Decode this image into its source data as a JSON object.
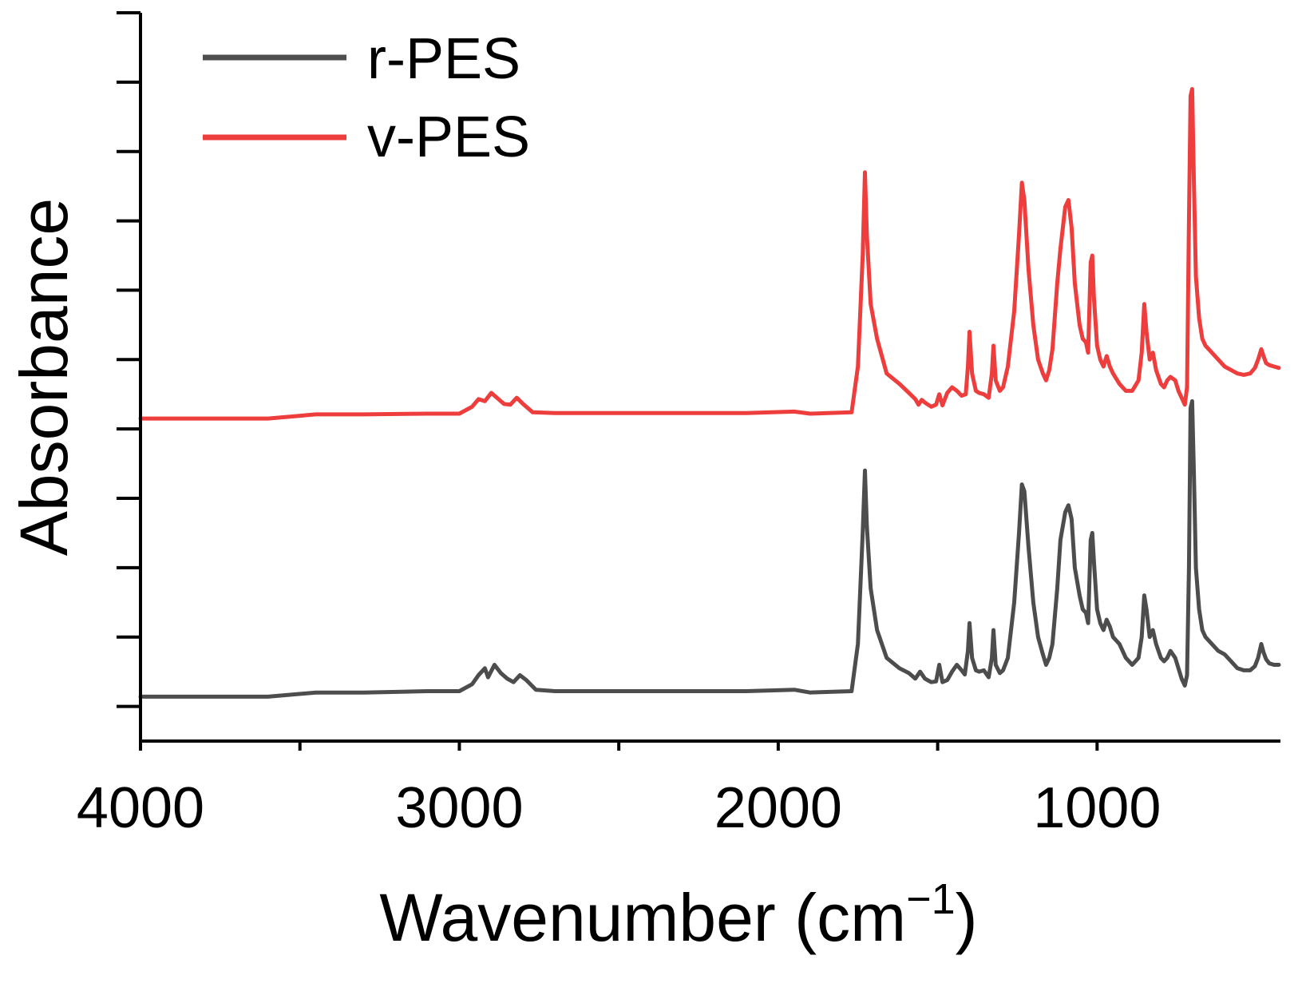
{
  "chart_data": {
    "type": "line",
    "title": "",
    "xlabel": "Wavenumber (cm",
    "xlabel_sup": "−1",
    "xlabel_close": ")",
    "ylabel": "Absorbance",
    "xlim": [
      4000,
      430
    ],
    "ylim": [
      0,
      10.5
    ],
    "x_ticks": [
      4000,
      3000,
      2000,
      1000
    ],
    "x_minor_ticks": [
      3500,
      2500,
      1500
    ],
    "y_ticks": [
      0.5,
      1.5,
      2.5,
      3.5,
      4.5,
      5.5,
      6.5,
      7.5,
      8.5,
      9.5,
      10.5
    ],
    "grid": false,
    "legend": "top-left",
    "series": [
      {
        "name": "r-PES",
        "color": "#4d4d4d",
        "points": [
          [
            4000,
            0.64
          ],
          [
            3600,
            0.64
          ],
          [
            3450,
            0.7
          ],
          [
            3300,
            0.7
          ],
          [
            3100,
            0.72
          ],
          [
            3000,
            0.72
          ],
          [
            2960,
            0.82
          ],
          [
            2940,
            0.95
          ],
          [
            2920,
            1.05
          ],
          [
            2910,
            0.92
          ],
          [
            2890,
            1.1
          ],
          [
            2870,
            0.98
          ],
          [
            2850,
            0.9
          ],
          [
            2830,
            0.85
          ],
          [
            2810,
            0.95
          ],
          [
            2790,
            0.88
          ],
          [
            2760,
            0.74
          ],
          [
            2700,
            0.72
          ],
          [
            2500,
            0.72
          ],
          [
            2300,
            0.72
          ],
          [
            2100,
            0.72
          ],
          [
            1950,
            0.74
          ],
          [
            1900,
            0.7
          ],
          [
            1770,
            0.72
          ],
          [
            1750,
            1.4
          ],
          [
            1735,
            3.0
          ],
          [
            1728,
            3.9
          ],
          [
            1722,
            3.1
          ],
          [
            1710,
            2.2
          ],
          [
            1690,
            1.6
          ],
          [
            1660,
            1.2
          ],
          [
            1620,
            1.05
          ],
          [
            1590,
            0.98
          ],
          [
            1570,
            0.9
          ],
          [
            1555,
            1.0
          ],
          [
            1540,
            0.9
          ],
          [
            1520,
            0.85
          ],
          [
            1505,
            0.86
          ],
          [
            1495,
            1.1
          ],
          [
            1485,
            0.85
          ],
          [
            1470,
            0.88
          ],
          [
            1455,
            1.0
          ],
          [
            1440,
            1.1
          ],
          [
            1425,
            1.02
          ],
          [
            1415,
            0.96
          ],
          [
            1405,
            1.3
          ],
          [
            1400,
            1.7
          ],
          [
            1392,
            1.2
          ],
          [
            1380,
            1.02
          ],
          [
            1370,
            1.0
          ],
          [
            1355,
            1.02
          ],
          [
            1340,
            0.92
          ],
          [
            1330,
            1.2
          ],
          [
            1325,
            1.6
          ],
          [
            1318,
            1.1
          ],
          [
            1305,
            0.98
          ],
          [
            1295,
            1.02
          ],
          [
            1280,
            1.2
          ],
          [
            1260,
            2.0
          ],
          [
            1245,
            3.0
          ],
          [
            1236,
            3.7
          ],
          [
            1228,
            3.6
          ],
          [
            1215,
            2.8
          ],
          [
            1200,
            2.0
          ],
          [
            1185,
            1.5
          ],
          [
            1170,
            1.25
          ],
          [
            1160,
            1.1
          ],
          [
            1150,
            1.2
          ],
          [
            1140,
            1.4
          ],
          [
            1125,
            2.2
          ],
          [
            1115,
            2.9
          ],
          [
            1100,
            3.3
          ],
          [
            1090,
            3.4
          ],
          [
            1080,
            3.2
          ],
          [
            1070,
            2.5
          ],
          [
            1055,
            2.1
          ],
          [
            1045,
            1.9
          ],
          [
            1035,
            1.85
          ],
          [
            1028,
            1.7
          ],
          [
            1020,
            2.9
          ],
          [
            1015,
            3.0
          ],
          [
            1010,
            2.6
          ],
          [
            1000,
            1.9
          ],
          [
            990,
            1.7
          ],
          [
            980,
            1.6
          ],
          [
            970,
            1.75
          ],
          [
            960,
            1.65
          ],
          [
            950,
            1.5
          ],
          [
            930,
            1.4
          ],
          [
            910,
            1.2
          ],
          [
            890,
            1.1
          ],
          [
            870,
            1.2
          ],
          [
            860,
            1.5
          ],
          [
            852,
            2.1
          ],
          [
            845,
            1.9
          ],
          [
            835,
            1.5
          ],
          [
            825,
            1.6
          ],
          [
            815,
            1.4
          ],
          [
            800,
            1.2
          ],
          [
            790,
            1.15
          ],
          [
            780,
            1.2
          ],
          [
            770,
            1.3
          ],
          [
            755,
            1.2
          ],
          [
            745,
            1.05
          ],
          [
            735,
            0.9
          ],
          [
            725,
            0.8
          ],
          [
            718,
            0.95
          ],
          [
            712,
            2.5
          ],
          [
            707,
            4.8
          ],
          [
            702,
            4.9
          ],
          [
            696,
            3.8
          ],
          [
            690,
            2.5
          ],
          [
            680,
            1.9
          ],
          [
            670,
            1.6
          ],
          [
            660,
            1.5
          ],
          [
            640,
            1.4
          ],
          [
            620,
            1.3
          ],
          [
            600,
            1.25
          ],
          [
            580,
            1.15
          ],
          [
            560,
            1.05
          ],
          [
            540,
            1.02
          ],
          [
            520,
            1.02
          ],
          [
            505,
            1.08
          ],
          [
            495,
            1.2
          ],
          [
            485,
            1.4
          ],
          [
            478,
            1.28
          ],
          [
            470,
            1.18
          ],
          [
            460,
            1.12
          ],
          [
            445,
            1.1
          ],
          [
            430,
            1.1
          ]
        ]
      },
      {
        "name": "v-PES",
        "color": "#ee3d3d",
        "points": [
          [
            4000,
            4.65
          ],
          [
            3600,
            4.65
          ],
          [
            3450,
            4.71
          ],
          [
            3300,
            4.71
          ],
          [
            3100,
            4.72
          ],
          [
            3000,
            4.72
          ],
          [
            2960,
            4.82
          ],
          [
            2940,
            4.93
          ],
          [
            2920,
            4.9
          ],
          [
            2900,
            5.02
          ],
          [
            2880,
            4.94
          ],
          [
            2860,
            4.86
          ],
          [
            2840,
            4.85
          ],
          [
            2820,
            4.95
          ],
          [
            2800,
            4.86
          ],
          [
            2770,
            4.74
          ],
          [
            2700,
            4.73
          ],
          [
            2500,
            4.73
          ],
          [
            2300,
            4.73
          ],
          [
            2100,
            4.73
          ],
          [
            1950,
            4.75
          ],
          [
            1900,
            4.72
          ],
          [
            1770,
            4.74
          ],
          [
            1750,
            5.4
          ],
          [
            1735,
            7.0
          ],
          [
            1728,
            8.2
          ],
          [
            1722,
            7.3
          ],
          [
            1710,
            6.3
          ],
          [
            1690,
            5.8
          ],
          [
            1660,
            5.3
          ],
          [
            1620,
            5.15
          ],
          [
            1590,
            5.02
          ],
          [
            1570,
            4.93
          ],
          [
            1560,
            4.85
          ],
          [
            1550,
            4.92
          ],
          [
            1540,
            4.88
          ],
          [
            1520,
            4.82
          ],
          [
            1505,
            4.85
          ],
          [
            1495,
            5.0
          ],
          [
            1485,
            4.84
          ],
          [
            1470,
            5.02
          ],
          [
            1455,
            5.1
          ],
          [
            1440,
            5.05
          ],
          [
            1425,
            4.98
          ],
          [
            1412,
            5.0
          ],
          [
            1405,
            5.4
          ],
          [
            1400,
            5.9
          ],
          [
            1392,
            5.3
          ],
          [
            1380,
            5.05
          ],
          [
            1370,
            5.02
          ],
          [
            1355,
            5.0
          ],
          [
            1340,
            4.95
          ],
          [
            1330,
            5.3
          ],
          [
            1325,
            5.7
          ],
          [
            1318,
            5.2
          ],
          [
            1305,
            5.05
          ],
          [
            1295,
            5.1
          ],
          [
            1280,
            5.4
          ],
          [
            1260,
            6.2
          ],
          [
            1245,
            7.3
          ],
          [
            1236,
            8.05
          ],
          [
            1228,
            7.8
          ],
          [
            1215,
            6.8
          ],
          [
            1200,
            6.0
          ],
          [
            1185,
            5.5
          ],
          [
            1170,
            5.3
          ],
          [
            1160,
            5.2
          ],
          [
            1150,
            5.35
          ],
          [
            1140,
            5.65
          ],
          [
            1125,
            6.6
          ],
          [
            1115,
            7.1
          ],
          [
            1100,
            7.7
          ],
          [
            1090,
            7.8
          ],
          [
            1080,
            7.4
          ],
          [
            1070,
            6.6
          ],
          [
            1055,
            6.0
          ],
          [
            1045,
            5.8
          ],
          [
            1035,
            5.75
          ],
          [
            1028,
            5.6
          ],
          [
            1020,
            6.9
          ],
          [
            1015,
            7.0
          ],
          [
            1010,
            6.4
          ],
          [
            1000,
            5.7
          ],
          [
            990,
            5.5
          ],
          [
            980,
            5.4
          ],
          [
            970,
            5.55
          ],
          [
            960,
            5.4
          ],
          [
            950,
            5.3
          ],
          [
            930,
            5.15
          ],
          [
            910,
            5.05
          ],
          [
            890,
            5.05
          ],
          [
            870,
            5.2
          ],
          [
            860,
            5.6
          ],
          [
            852,
            6.3
          ],
          [
            845,
            5.9
          ],
          [
            835,
            5.5
          ],
          [
            825,
            5.6
          ],
          [
            815,
            5.35
          ],
          [
            800,
            5.15
          ],
          [
            790,
            5.1
          ],
          [
            780,
            5.2
          ],
          [
            770,
            5.25
          ],
          [
            755,
            5.2
          ],
          [
            745,
            5.05
          ],
          [
            735,
            4.95
          ],
          [
            725,
            4.85
          ],
          [
            718,
            5.1
          ],
          [
            712,
            7.5
          ],
          [
            707,
            9.3
          ],
          [
            702,
            9.4
          ],
          [
            696,
            8.0
          ],
          [
            690,
            6.7
          ],
          [
            680,
            6.1
          ],
          [
            670,
            5.8
          ],
          [
            660,
            5.7
          ],
          [
            640,
            5.6
          ],
          [
            620,
            5.5
          ],
          [
            600,
            5.4
          ],
          [
            580,
            5.35
          ],
          [
            560,
            5.3
          ],
          [
            540,
            5.28
          ],
          [
            520,
            5.3
          ],
          [
            505,
            5.38
          ],
          [
            495,
            5.5
          ],
          [
            485,
            5.65
          ],
          [
            478,
            5.55
          ],
          [
            470,
            5.45
          ],
          [
            460,
            5.42
          ],
          [
            445,
            5.4
          ],
          [
            430,
            5.38
          ]
        ]
      }
    ]
  }
}
